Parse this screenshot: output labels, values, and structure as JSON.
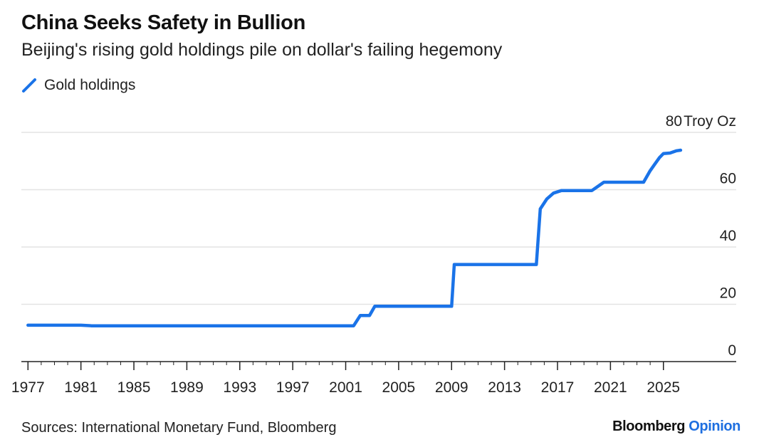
{
  "header": {
    "title": "China Seeks Safety in Bullion",
    "subtitle": "Beijing's rising gold holdings pile on dollar's failing hegemony"
  },
  "legend": {
    "label": "Gold holdings",
    "color": "#1a73e8"
  },
  "footer": {
    "source": "Sources: International Monetary Fund, Bloomberg",
    "brand_primary": "Bloomberg",
    "brand_secondary": "Opinion"
  },
  "chart_data": {
    "type": "line",
    "title": "China Seeks Safety in Bullion",
    "subtitle": "Beijing's rising gold holdings pile on dollar's failing hegemony",
    "xlabel": "",
    "ylabel": "Troy Oz",
    "y_unit_label": "Troy Oz",
    "ylim": [
      0,
      80
    ],
    "xlim": [
      1976.5,
      2030.5
    ],
    "y_ticks": [
      0,
      20,
      40,
      60,
      80
    ],
    "x_ticks": [
      1977,
      1981,
      1985,
      1989,
      1993,
      1997,
      2001,
      2005,
      2009,
      2013,
      2017,
      2021,
      2025
    ],
    "grid": true,
    "legend_position": "top-left",
    "series": [
      {
        "name": "Gold holdings",
        "color": "#1a73e8",
        "points": [
          [
            1977,
            12.7
          ],
          [
            1981,
            12.7
          ],
          [
            1981.8,
            12.5
          ],
          [
            2001.6,
            12.5
          ],
          [
            2002.1,
            16.1
          ],
          [
            2002.8,
            16.1
          ],
          [
            2003.2,
            19.3
          ],
          [
            2009.0,
            19.3
          ],
          [
            2009.2,
            33.9
          ],
          [
            2015.4,
            33.9
          ],
          [
            2015.7,
            53.3
          ],
          [
            2016.2,
            56.8
          ],
          [
            2016.7,
            58.8
          ],
          [
            2017.3,
            59.7
          ],
          [
            2019.6,
            59.7
          ],
          [
            2020.0,
            61.0
          ],
          [
            2020.5,
            62.6
          ],
          [
            2023.5,
            62.6
          ],
          [
            2024.0,
            66.6
          ],
          [
            2024.3,
            68.6
          ],
          [
            2024.7,
            71.2
          ],
          [
            2025.0,
            72.6
          ],
          [
            2025.5,
            72.8
          ],
          [
            2026.0,
            73.6
          ],
          [
            2026.3,
            73.8
          ]
        ]
      }
    ]
  }
}
